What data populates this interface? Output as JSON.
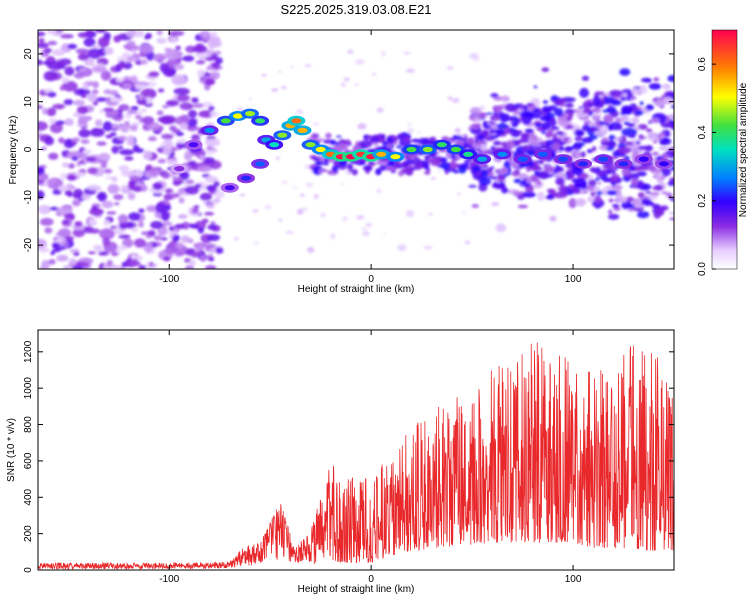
{
  "title": "S225.2025.319.03.08.E21",
  "chart_data": [
    {
      "type": "heatmap",
      "xlabel": "Height of straight line (km)",
      "ylabel": "Frequency (Hz)",
      "xlim": [
        -165,
        150
      ],
      "ylim": [
        -25,
        25
      ],
      "x_ticks": [
        -100,
        0,
        100
      ],
      "y_ticks": [
        -20,
        -10,
        0,
        10,
        20
      ],
      "colorbar": {
        "label": "Normalized spectral amplitude",
        "range": [
          0.0,
          0.7
        ],
        "ticks": [
          "0.0",
          "0.2",
          "0.4",
          "0.6"
        ]
      },
      "ridge": [
        {
          "x": -95,
          "f": -4,
          "a": 0.12
        },
        {
          "x": -88,
          "f": 1,
          "a": 0.18
        },
        {
          "x": -80,
          "f": 4,
          "a": 0.28
        },
        {
          "x": -72,
          "f": 6,
          "a": 0.42
        },
        {
          "x": -66,
          "f": 7,
          "a": 0.5
        },
        {
          "x": -60,
          "f": 7.5,
          "a": 0.46
        },
        {
          "x": -55,
          "f": 6,
          "a": 0.4
        },
        {
          "x": -52,
          "f": 2,
          "a": 0.3
        },
        {
          "x": -55,
          "f": -3,
          "a": 0.25
        },
        {
          "x": -62,
          "f": -6,
          "a": 0.22
        },
        {
          "x": -70,
          "f": -8,
          "a": 0.18
        },
        {
          "x": -48,
          "f": 1,
          "a": 0.35
        },
        {
          "x": -44,
          "f": 3,
          "a": 0.45
        },
        {
          "x": -40,
          "f": 5,
          "a": 0.55
        },
        {
          "x": -37,
          "f": 6,
          "a": 0.6
        },
        {
          "x": -34,
          "f": 4,
          "a": 0.55
        },
        {
          "x": -30,
          "f": 1,
          "a": 0.45
        },
        {
          "x": -25,
          "f": 0,
          "a": 0.5
        },
        {
          "x": -20,
          "f": -1,
          "a": 0.6
        },
        {
          "x": -15,
          "f": -1.5,
          "a": 0.68
        },
        {
          "x": -10,
          "f": -1.5,
          "a": 0.7
        },
        {
          "x": -5,
          "f": -1,
          "a": 0.65
        },
        {
          "x": 0,
          "f": -1.5,
          "a": 0.68
        },
        {
          "x": 5,
          "f": -1,
          "a": 0.55
        },
        {
          "x": 12,
          "f": -1.5,
          "a": 0.5
        },
        {
          "x": 20,
          "f": 0,
          "a": 0.42
        },
        {
          "x": 28,
          "f": 0,
          "a": 0.45
        },
        {
          "x": 35,
          "f": 1,
          "a": 0.4
        },
        {
          "x": 42,
          "f": 0,
          "a": 0.42
        },
        {
          "x": 48,
          "f": -1,
          "a": 0.38
        },
        {
          "x": 55,
          "f": -2,
          "a": 0.3
        },
        {
          "x": 65,
          "f": -1,
          "a": 0.28
        },
        {
          "x": 75,
          "f": -2,
          "a": 0.25
        },
        {
          "x": 85,
          "f": -1,
          "a": 0.25
        },
        {
          "x": 95,
          "f": -2,
          "a": 0.24
        },
        {
          "x": 105,
          "f": -3,
          "a": 0.22
        },
        {
          "x": 115,
          "f": -2,
          "a": 0.24
        },
        {
          "x": 125,
          "f": -3,
          "a": 0.22
        },
        {
          "x": 135,
          "f": -2,
          "a": 0.2
        },
        {
          "x": 145,
          "f": -3,
          "a": 0.2
        }
      ]
    },
    {
      "type": "line",
      "xlabel": "Height of straight line (km)",
      "ylabel": "SNR (10 * v/v)",
      "xlim": [
        -165,
        150
      ],
      "ylim": [
        0,
        1320
      ],
      "x_ticks": [
        -100,
        0,
        100
      ],
      "y_ticks": [
        0,
        200,
        400,
        600,
        800,
        1000,
        1200
      ],
      "color": "#e8282b",
      "envelope": [
        {
          "x": -165,
          "min": 5,
          "max": 40
        },
        {
          "x": -100,
          "min": 5,
          "max": 40
        },
        {
          "x": -70,
          "min": 10,
          "max": 45
        },
        {
          "x": -63,
          "min": 20,
          "max": 130
        },
        {
          "x": -55,
          "min": 30,
          "max": 150
        },
        {
          "x": -45,
          "min": 60,
          "max": 390
        },
        {
          "x": -38,
          "min": 40,
          "max": 120
        },
        {
          "x": -30,
          "min": 30,
          "max": 220
        },
        {
          "x": -20,
          "min": 40,
          "max": 600
        },
        {
          "x": -10,
          "min": 40,
          "max": 520
        },
        {
          "x": 0,
          "min": 40,
          "max": 520
        },
        {
          "x": 10,
          "min": 80,
          "max": 640
        },
        {
          "x": 20,
          "min": 100,
          "max": 800
        },
        {
          "x": 30,
          "min": 120,
          "max": 900
        },
        {
          "x": 40,
          "min": 130,
          "max": 950
        },
        {
          "x": 50,
          "min": 140,
          "max": 1000
        },
        {
          "x": 60,
          "min": 150,
          "max": 1120
        },
        {
          "x": 70,
          "min": 150,
          "max": 1200
        },
        {
          "x": 80,
          "min": 150,
          "max": 1320
        },
        {
          "x": 90,
          "min": 150,
          "max": 1250
        },
        {
          "x": 100,
          "min": 150,
          "max": 1150
        },
        {
          "x": 110,
          "min": 120,
          "max": 1220
        },
        {
          "x": 120,
          "min": 120,
          "max": 1100
        },
        {
          "x": 130,
          "min": 120,
          "max": 1300
        },
        {
          "x": 140,
          "min": 100,
          "max": 1250
        },
        {
          "x": 150,
          "min": 100,
          "max": 1000
        }
      ]
    }
  ]
}
